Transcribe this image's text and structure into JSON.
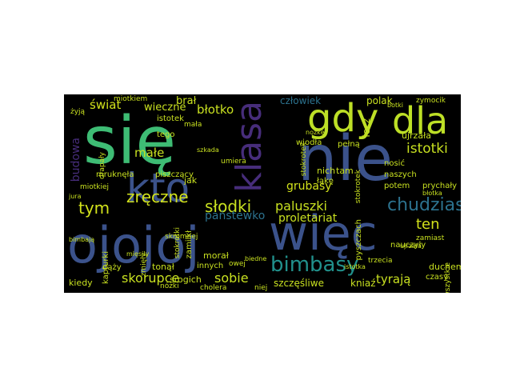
{
  "words": [
    {
      "text": "się",
      "color": "#3ebc74"
    },
    {
      "text": "nie",
      "color": "#3b528b"
    },
    {
      "text": "gdy",
      "color": "#bddf26"
    },
    {
      "text": "dla",
      "color": "#bddf26"
    },
    {
      "text": "kto",
      "color": "#3b528b"
    },
    {
      "text": "klasa",
      "color": "#472d7b"
    },
    {
      "text": "ojojoj",
      "color": "#3b528b"
    },
    {
      "text": "więc",
      "color": "#3b528b"
    },
    {
      "text": "bimbasy",
      "color": "#21918c"
    },
    {
      "text": "chudziasy",
      "color": "#2c728e"
    },
    {
      "text": "świat",
      "color": "#d2e21b"
    },
    {
      "text": "wieczne",
      "color": "#c8e020"
    },
    {
      "text": "brał",
      "color": "#c8e020"
    },
    {
      "text": "błotko",
      "color": "#c8e020"
    },
    {
      "text": "człowiek",
      "color": "#2c728e"
    },
    {
      "text": "polak",
      "color": "#c8e020"
    },
    {
      "text": "istotki",
      "color": "#c8e020"
    },
    {
      "text": "zręczne",
      "color": "#d2e21b"
    },
    {
      "text": "tym",
      "color": "#d2e21b"
    },
    {
      "text": "słodki",
      "color": "#c8e020"
    },
    {
      "text": "paluszki",
      "color": "#c8e020"
    },
    {
      "text": "państewko",
      "color": "#2c728e"
    },
    {
      "text": "grubasy",
      "color": "#d2e21b"
    },
    {
      "text": "proletariat",
      "color": "#c8e020"
    },
    {
      "text": "ten",
      "color": "#d2e21b"
    },
    {
      "text": "skorupce",
      "color": "#c8e020"
    },
    {
      "text": "sobie",
      "color": "#c8e020"
    },
    {
      "text": "szczęśliwe",
      "color": "#c8e020"
    },
    {
      "text": "kniaź",
      "color": "#c8e020"
    },
    {
      "text": "tyrają",
      "color": "#c8e020"
    },
    {
      "text": "małe",
      "color": "#c8e020"
    },
    {
      "text": "budowa",
      "color": "#472d7b"
    },
    {
      "text": "duchem",
      "color": "#c8e020"
    },
    {
      "text": "kiedy",
      "color": "#c8e020"
    },
    {
      "text": "srogich",
      "color": "#c8e020"
    },
    {
      "text": "tonął",
      "color": "#c8e020"
    },
    {
      "text": "mruknęła",
      "color": "#c8e020"
    },
    {
      "text": "kapturki",
      "color": "#c8e020"
    },
    {
      "text": "piszczący",
      "color": "#c8e020"
    },
    {
      "text": "jak",
      "color": "#c8e020"
    },
    {
      "text": "tego",
      "color": "#c8e020"
    },
    {
      "text": "istotek",
      "color": "#c8e020"
    },
    {
      "text": "ujrzała",
      "color": "#c8e020"
    },
    {
      "text": "lecz",
      "color": "#c8e020"
    },
    {
      "text": "wiodła",
      "color": "#c8e020"
    },
    {
      "text": "pełną",
      "color": "#c8e020"
    },
    {
      "text": "tam",
      "color": "#c8e020"
    },
    {
      "text": "potem",
      "color": "#c8e020"
    },
    {
      "text": "naszych",
      "color": "#c8e020"
    },
    {
      "text": "czasy",
      "color": "#c8e020"
    },
    {
      "text": "skromnej",
      "color": "#c8e020"
    },
    {
      "text": "morał",
      "color": "#c8e020"
    },
    {
      "text": "dąży",
      "color": "#c8e020"
    },
    {
      "text": "innych",
      "color": "#c8e020"
    },
    {
      "text": "cholera",
      "color": "#c8e020"
    },
    {
      "text": "niej",
      "color": "#c8e020"
    },
    {
      "text": "wszystkie",
      "color": "#c8e020"
    },
    {
      "text": "zamiast",
      "color": "#c8e020"
    },
    {
      "text": "pyszczach",
      "color": "#c8e020"
    },
    {
      "text": "trzecia",
      "color": "#c8e020"
    },
    {
      "text": "nosić",
      "color": "#c8e020"
    },
    {
      "text": "prychały",
      "color": "#c8e020"
    },
    {
      "text": "zymocik",
      "color": "#c8e020"
    },
    {
      "text": "miotkiem",
      "color": "#c8e020"
    },
    {
      "text": "żyją",
      "color": "#c8e020"
    },
    {
      "text": "nich",
      "color": "#c8e020"
    },
    {
      "text": "łąkę",
      "color": "#c8e020"
    },
    {
      "text": "miotkiej",
      "color": "#c8e020"
    },
    {
      "text": "drapały",
      "color": "#c8e020"
    },
    {
      "text": "stokrotki",
      "color": "#c8e020"
    },
    {
      "text": "zmięły",
      "color": "#c8e020"
    },
    {
      "text": "nóżki",
      "color": "#c8e020"
    },
    {
      "text": "jura",
      "color": "#c8e020"
    },
    {
      "text": "bimbają",
      "color": "#c8e020"
    },
    {
      "text": "mięsiły",
      "color": "#c8e020"
    },
    {
      "text": "umiera",
      "color": "#c8e020"
    },
    {
      "text": "ujrzała",
      "color": "#c8e020"
    },
    {
      "text": "stokrotek",
      "color": "#c8e020"
    },
    {
      "text": "biedne",
      "color": "#c8e020"
    },
    {
      "text": "owej",
      "color": "#c8e020"
    },
    {
      "text": "nauczyły",
      "color": "#c8e020"
    },
    {
      "text": "błotka",
      "color": "#c8e020"
    },
    {
      "text": "botki",
      "color": "#c8e020"
    },
    {
      "text": "nozkę",
      "color": "#c8e020"
    },
    {
      "text": "szkada",
      "color": "#c8e020"
    },
    {
      "text": "zamilkł",
      "color": "#c8e020"
    },
    {
      "text": "mała",
      "color": "#c8e020"
    },
    {
      "text": "istotka",
      "color": "#c8e020"
    },
    {
      "text": "stokrotek",
      "color": "#c8e020"
    }
  ]
}
